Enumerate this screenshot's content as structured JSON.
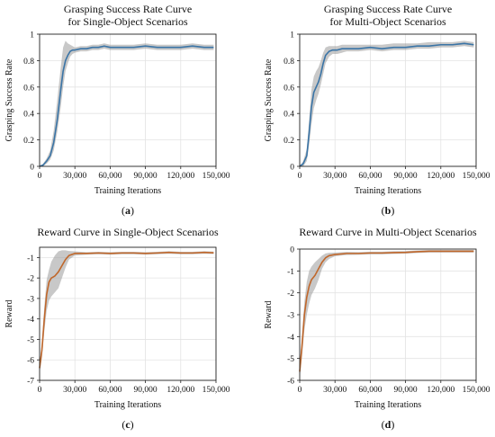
{
  "panels": [
    {
      "letter": "a",
      "chart_data": {
        "type": "line",
        "title_lines": [
          "Grasping Success Rate Curve",
          "for Single-Object Scenarios"
        ],
        "xlabel": "Training Iterations",
        "ylabel": "Grasping Success Rate",
        "xlim": [
          0,
          150000
        ],
        "ylim": [
          0,
          1
        ],
        "xticks": [
          0,
          30000,
          60000,
          90000,
          120000,
          150000
        ],
        "xtick_labels": [
          "0",
          "30,000",
          "60,000",
          "90,000",
          "120,000",
          "150,000"
        ],
        "yticks": [
          0,
          0.2,
          0.4,
          0.6,
          0.8,
          1
        ],
        "ytick_labels": [
          "0",
          "0.2",
          "0.4",
          "0.6",
          "0.8",
          "1"
        ],
        "grid": true,
        "series": [
          {
            "color": "#3a74a6",
            "band_color": "#9a9a9a",
            "x": [
              0,
              3000,
              6000,
              9000,
              12000,
              15000,
              18000,
              20000,
              22000,
              24000,
              26000,
              28000,
              30000,
              35000,
              40000,
              45000,
              50000,
              55000,
              60000,
              70000,
              80000,
              90000,
              100000,
              110000,
              120000,
              130000,
              140000,
              148000
            ],
            "y": [
              0.0,
              0.01,
              0.04,
              0.08,
              0.18,
              0.35,
              0.58,
              0.72,
              0.8,
              0.84,
              0.87,
              0.88,
              0.88,
              0.89,
              0.89,
              0.9,
              0.9,
              0.91,
              0.9,
              0.9,
              0.9,
              0.91,
              0.9,
              0.9,
              0.9,
              0.91,
              0.9,
              0.9
            ],
            "lower": [
              0.0,
              0.0,
              0.02,
              0.05,
              0.12,
              0.26,
              0.45,
              0.6,
              0.72,
              0.78,
              0.83,
              0.85,
              0.86,
              0.87,
              0.87,
              0.88,
              0.88,
              0.89,
              0.88,
              0.88,
              0.88,
              0.89,
              0.88,
              0.88,
              0.88,
              0.89,
              0.88,
              0.88
            ],
            "upper": [
              0.0,
              0.02,
              0.06,
              0.12,
              0.27,
              0.5,
              0.75,
              0.9,
              0.95,
              0.93,
              0.92,
              0.91,
              0.9,
              0.91,
              0.91,
              0.92,
              0.92,
              0.93,
              0.92,
              0.92,
              0.92,
              0.93,
              0.92,
              0.92,
              0.92,
              0.93,
              0.92,
              0.92
            ]
          }
        ]
      }
    },
    {
      "letter": "b",
      "chart_data": {
        "type": "line",
        "title_lines": [
          "Grasping Success Rate Curve",
          "for Multi-Object Scenarios"
        ],
        "xlabel": "Training Iterations",
        "ylabel": "Grasping Success Rate",
        "xlim": [
          0,
          150000
        ],
        "ylim": [
          0,
          1
        ],
        "xticks": [
          0,
          30000,
          60000,
          90000,
          120000,
          150000
        ],
        "xtick_labels": [
          "0",
          "30,000",
          "60,000",
          "90,000",
          "120,000",
          "150,000"
        ],
        "yticks": [
          0,
          0.2,
          0.4,
          0.6,
          0.8,
          1
        ],
        "ytick_labels": [
          "0",
          "0.2",
          "0.4",
          "0.6",
          "0.8",
          "1"
        ],
        "grid": true,
        "series": [
          {
            "color": "#3a74a6",
            "band_color": "#9a9a9a",
            "x": [
              0,
              3000,
              6000,
              8000,
              10000,
              12000,
              14000,
              16000,
              18000,
              20000,
              22000,
              25000,
              28000,
              32000,
              36000,
              40000,
              50000,
              60000,
              70000,
              80000,
              90000,
              100000,
              110000,
              120000,
              130000,
              140000,
              148000
            ],
            "y": [
              0.0,
              0.02,
              0.08,
              0.25,
              0.45,
              0.56,
              0.6,
              0.64,
              0.7,
              0.78,
              0.84,
              0.87,
              0.88,
              0.88,
              0.89,
              0.89,
              0.89,
              0.9,
              0.89,
              0.9,
              0.9,
              0.91,
              0.91,
              0.92,
              0.92,
              0.93,
              0.92
            ],
            "lower": [
              0.0,
              0.0,
              0.04,
              0.16,
              0.32,
              0.44,
              0.5,
              0.55,
              0.62,
              0.7,
              0.78,
              0.83,
              0.85,
              0.85,
              0.86,
              0.87,
              0.87,
              0.88,
              0.87,
              0.88,
              0.88,
              0.89,
              0.89,
              0.9,
              0.9,
              0.91,
              0.9
            ],
            "upper": [
              0.0,
              0.04,
              0.13,
              0.35,
              0.58,
              0.68,
              0.72,
              0.75,
              0.8,
              0.86,
              0.9,
              0.91,
              0.91,
              0.91,
              0.92,
              0.92,
              0.92,
              0.92,
              0.92,
              0.93,
              0.93,
              0.93,
              0.94,
              0.94,
              0.94,
              0.95,
              0.94
            ]
          }
        ]
      }
    },
    {
      "letter": "c",
      "chart_data": {
        "type": "line",
        "title_lines": [
          "Reward Curve in Single-Object Scenarios"
        ],
        "xlabel": "Training Iterations",
        "ylabel": "Reward",
        "xlim": [
          0,
          150000
        ],
        "ylim": [
          -7,
          -0.5
        ],
        "xticks": [
          0,
          30000,
          60000,
          90000,
          120000,
          150000
        ],
        "xtick_labels": [
          "0",
          "30,000",
          "60,000",
          "90,000",
          "120,000",
          "150,000"
        ],
        "yticks": [
          -7,
          -6,
          -5,
          -4,
          -3,
          -2,
          -1
        ],
        "ytick_labels": [
          "-7",
          "-6",
          "-5",
          "-4",
          "-3",
          "-2",
          "-1"
        ],
        "grid": true,
        "series": [
          {
            "color": "#c0672b",
            "band_color": "#9a9a9a",
            "x": [
              0,
              2000,
              4000,
              6000,
              8000,
              10000,
              13000,
              16000,
              19000,
              22000,
              25000,
              30000,
              40000,
              50000,
              60000,
              70000,
              80000,
              90000,
              100000,
              110000,
              120000,
              130000,
              140000,
              148000
            ],
            "y": [
              -6.4,
              -5.5,
              -4.0,
              -2.8,
              -2.2,
              -2.0,
              -1.9,
              -1.7,
              -1.4,
              -1.1,
              -0.9,
              -0.8,
              -0.8,
              -0.78,
              -0.8,
              -0.78,
              -0.78,
              -0.8,
              -0.78,
              -0.75,
              -0.78,
              -0.78,
              -0.75,
              -0.77
            ],
            "lower": [
              -6.6,
              -5.9,
              -4.6,
              -3.6,
              -3.1,
              -2.9,
              -2.7,
              -2.5,
              -2.0,
              -1.5,
              -1.1,
              -0.9,
              -0.86,
              -0.84,
              -0.86,
              -0.84,
              -0.84,
              -0.86,
              -0.84,
              -0.82,
              -0.84,
              -0.84,
              -0.82,
              -0.83
            ],
            "upper": [
              -6.2,
              -5.1,
              -3.4,
              -2.1,
              -1.6,
              -1.2,
              -0.9,
              -0.7,
              -0.65,
              -0.65,
              -0.68,
              -0.7,
              -0.74,
              -0.72,
              -0.74,
              -0.72,
              -0.72,
              -0.74,
              -0.72,
              -0.69,
              -0.72,
              -0.72,
              -0.69,
              -0.71
            ]
          }
        ]
      }
    },
    {
      "letter": "d",
      "chart_data": {
        "type": "line",
        "title_lines": [
          "Reward Curve in Multi-Object Scenarios"
        ],
        "xlabel": "Training Iterations",
        "ylabel": "Reward",
        "xlim": [
          0,
          150000
        ],
        "ylim": [
          -6,
          0
        ],
        "xticks": [
          0,
          30000,
          60000,
          90000,
          120000,
          150000
        ],
        "xtick_labels": [
          "0",
          "30,000",
          "60,000",
          "90,000",
          "120,000",
          "150,000"
        ],
        "yticks": [
          -6,
          -5,
          -4,
          -3,
          -2,
          -1,
          0
        ],
        "ytick_labels": [
          "-6",
          "-5",
          "-4",
          "-3",
          "-2",
          "-1",
          "0"
        ],
        "grid": true,
        "series": [
          {
            "color": "#c0672b",
            "band_color": "#9a9a9a",
            "x": [
              0,
              2000,
              4000,
              6000,
              8000,
              10000,
              13000,
              16000,
              19000,
              22000,
              25000,
              30000,
              40000,
              50000,
              60000,
              70000,
              80000,
              90000,
              100000,
              110000,
              120000,
              130000,
              140000,
              148000
            ],
            "y": [
              -5.6,
              -4.4,
              -3.0,
              -2.2,
              -1.7,
              -1.4,
              -1.2,
              -0.9,
              -0.6,
              -0.4,
              -0.3,
              -0.25,
              -0.2,
              -0.2,
              -0.18,
              -0.18,
              -0.16,
              -0.15,
              -0.12,
              -0.1,
              -0.1,
              -0.1,
              -0.1,
              -0.1
            ],
            "lower": [
              -5.9,
              -4.9,
              -3.7,
              -3.0,
              -2.5,
              -2.1,
              -1.8,
              -1.4,
              -0.9,
              -0.6,
              -0.45,
              -0.33,
              -0.27,
              -0.26,
              -0.24,
              -0.24,
              -0.22,
              -0.21,
              -0.18,
              -0.16,
              -0.16,
              -0.16,
              -0.16,
              -0.16
            ],
            "upper": [
              -5.3,
              -3.9,
              -2.4,
              -1.5,
              -1.0,
              -0.8,
              -0.6,
              -0.45,
              -0.3,
              -0.2,
              -0.17,
              -0.16,
              -0.13,
              -0.14,
              -0.12,
              -0.12,
              -0.1,
              -0.09,
              -0.06,
              -0.04,
              -0.04,
              -0.04,
              -0.04,
              -0.04
            ]
          }
        ]
      }
    }
  ]
}
